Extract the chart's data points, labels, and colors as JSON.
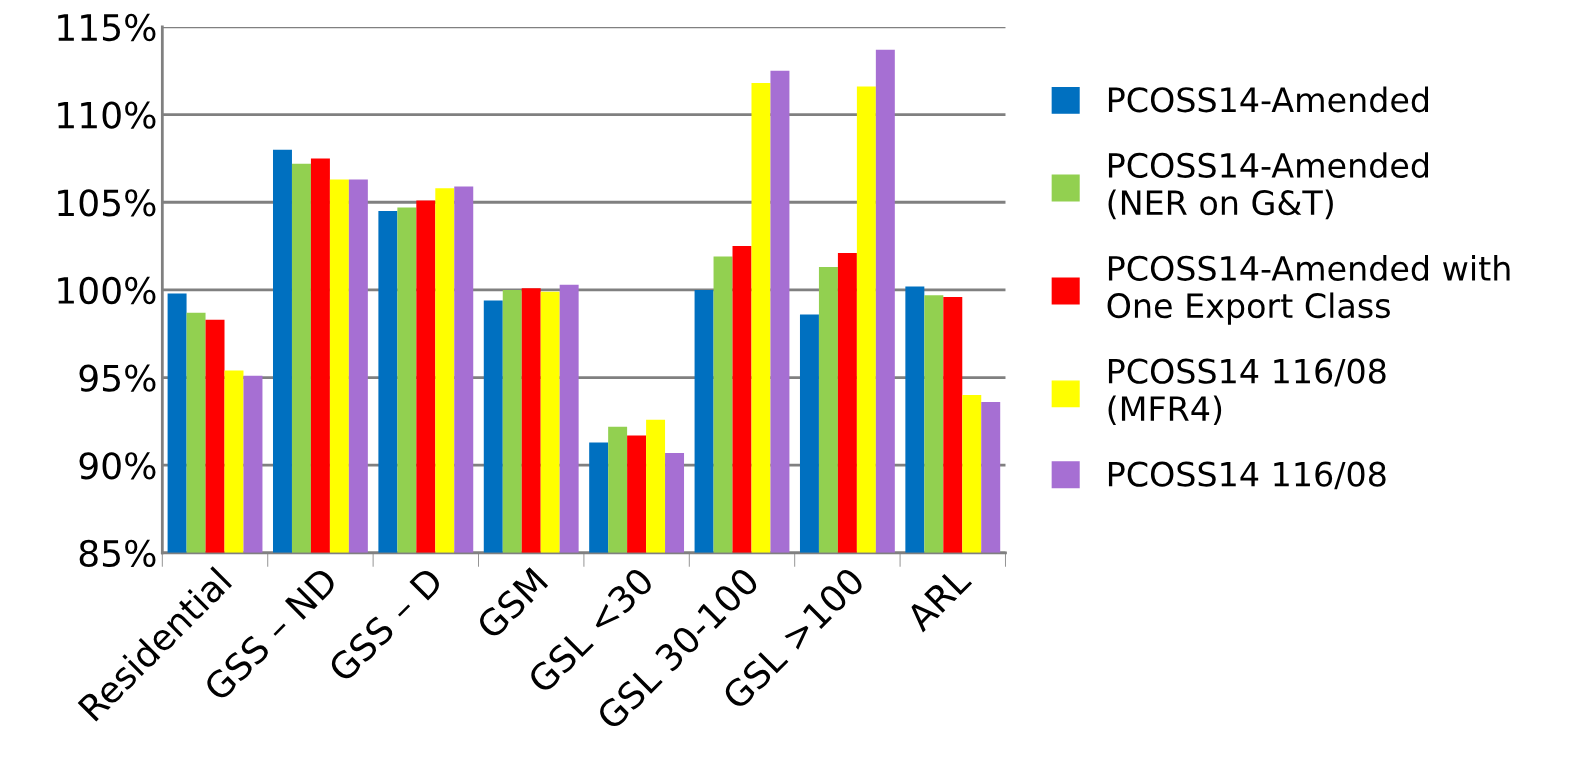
{
  "chart_data": {
    "type": "bar",
    "categories": [
      "Residential",
      "GSS – ND",
      "GSS – D",
      "GSM",
      "GSL <30",
      "GSL 30-100",
      "GSL >100",
      "ARL"
    ],
    "series": [
      {
        "name": "PCOSS14-Amended",
        "color": "#0070c0",
        "values": [
          99.8,
          108.0,
          104.5,
          99.4,
          91.3,
          100.0,
          98.6,
          100.2
        ]
      },
      {
        "name": "PCOSS14-Amended\n(NER on G&T)",
        "color": "#92d050",
        "values": [
          98.7,
          107.2,
          104.7,
          100.0,
          92.2,
          101.9,
          101.3,
          99.7
        ]
      },
      {
        "name": "PCOSS14-Amended with\nOne Export Class",
        "color": "#ff0000",
        "values": [
          98.3,
          107.5,
          105.1,
          100.1,
          91.7,
          102.5,
          102.1,
          99.6
        ]
      },
      {
        "name": "PCOSS14 116/08\n(MFR4)",
        "color": "#ffff00",
        "values": [
          95.4,
          106.3,
          105.8,
          99.9,
          92.6,
          111.8,
          111.6,
          94.0
        ]
      },
      {
        "name": "PCOSS14 116/08",
        "color": "#a66fd3",
        "values": [
          95.1,
          106.3,
          105.9,
          100.3,
          90.7,
          112.5,
          113.7,
          93.6
        ]
      }
    ],
    "ylim": [
      85,
      115
    ],
    "yticks": [
      {
        "value": 85,
        "label": "85%"
      },
      {
        "value": 90,
        "label": "90%"
      },
      {
        "value": 95,
        "label": "95%"
      },
      {
        "value": 100,
        "label": "100%"
      },
      {
        "value": 105,
        "label": "105%"
      },
      {
        "value": 110,
        "label": "110%"
      },
      {
        "value": 115,
        "label": "115%"
      }
    ],
    "grid": "y",
    "legend": "right"
  }
}
